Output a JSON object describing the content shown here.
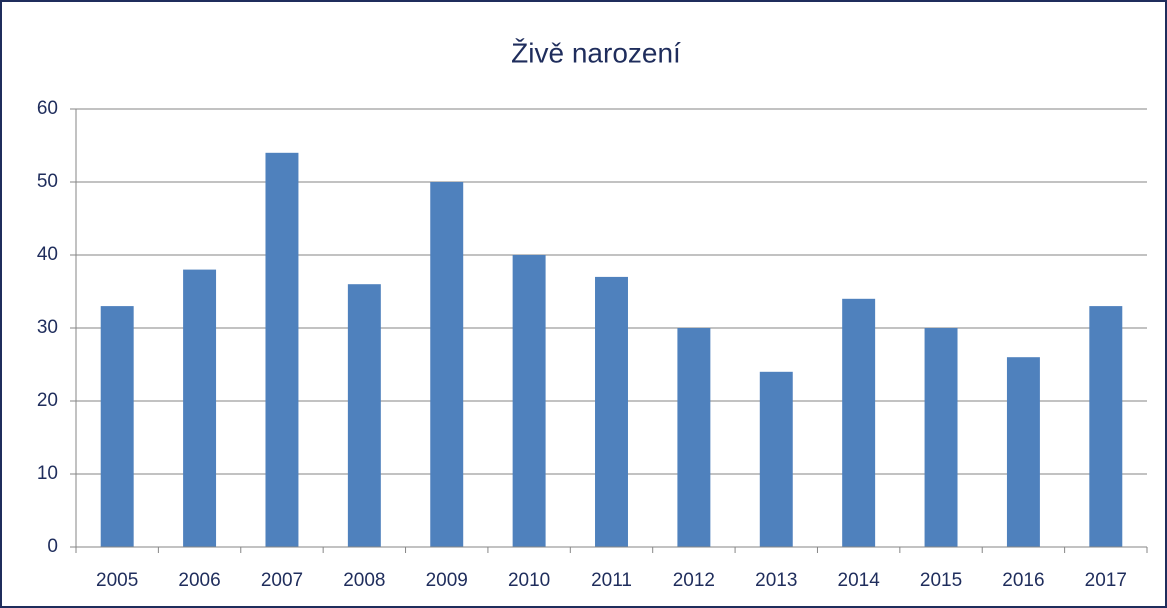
{
  "chart_data": {
    "type": "bar",
    "title": "Živě narození",
    "categories": [
      "2005",
      "2006",
      "2007",
      "2008",
      "2009",
      "2010",
      "2011",
      "2012",
      "2013",
      "2014",
      "2015",
      "2016",
      "2017"
    ],
    "values": [
      33,
      38,
      54,
      36,
      50,
      40,
      37,
      30,
      24,
      34,
      30,
      26,
      33
    ],
    "color": "#4f81bd",
    "ylim": [
      0,
      60
    ],
    "yticks": [
      0,
      10,
      20,
      30,
      40,
      50,
      60
    ],
    "grid": true
  }
}
